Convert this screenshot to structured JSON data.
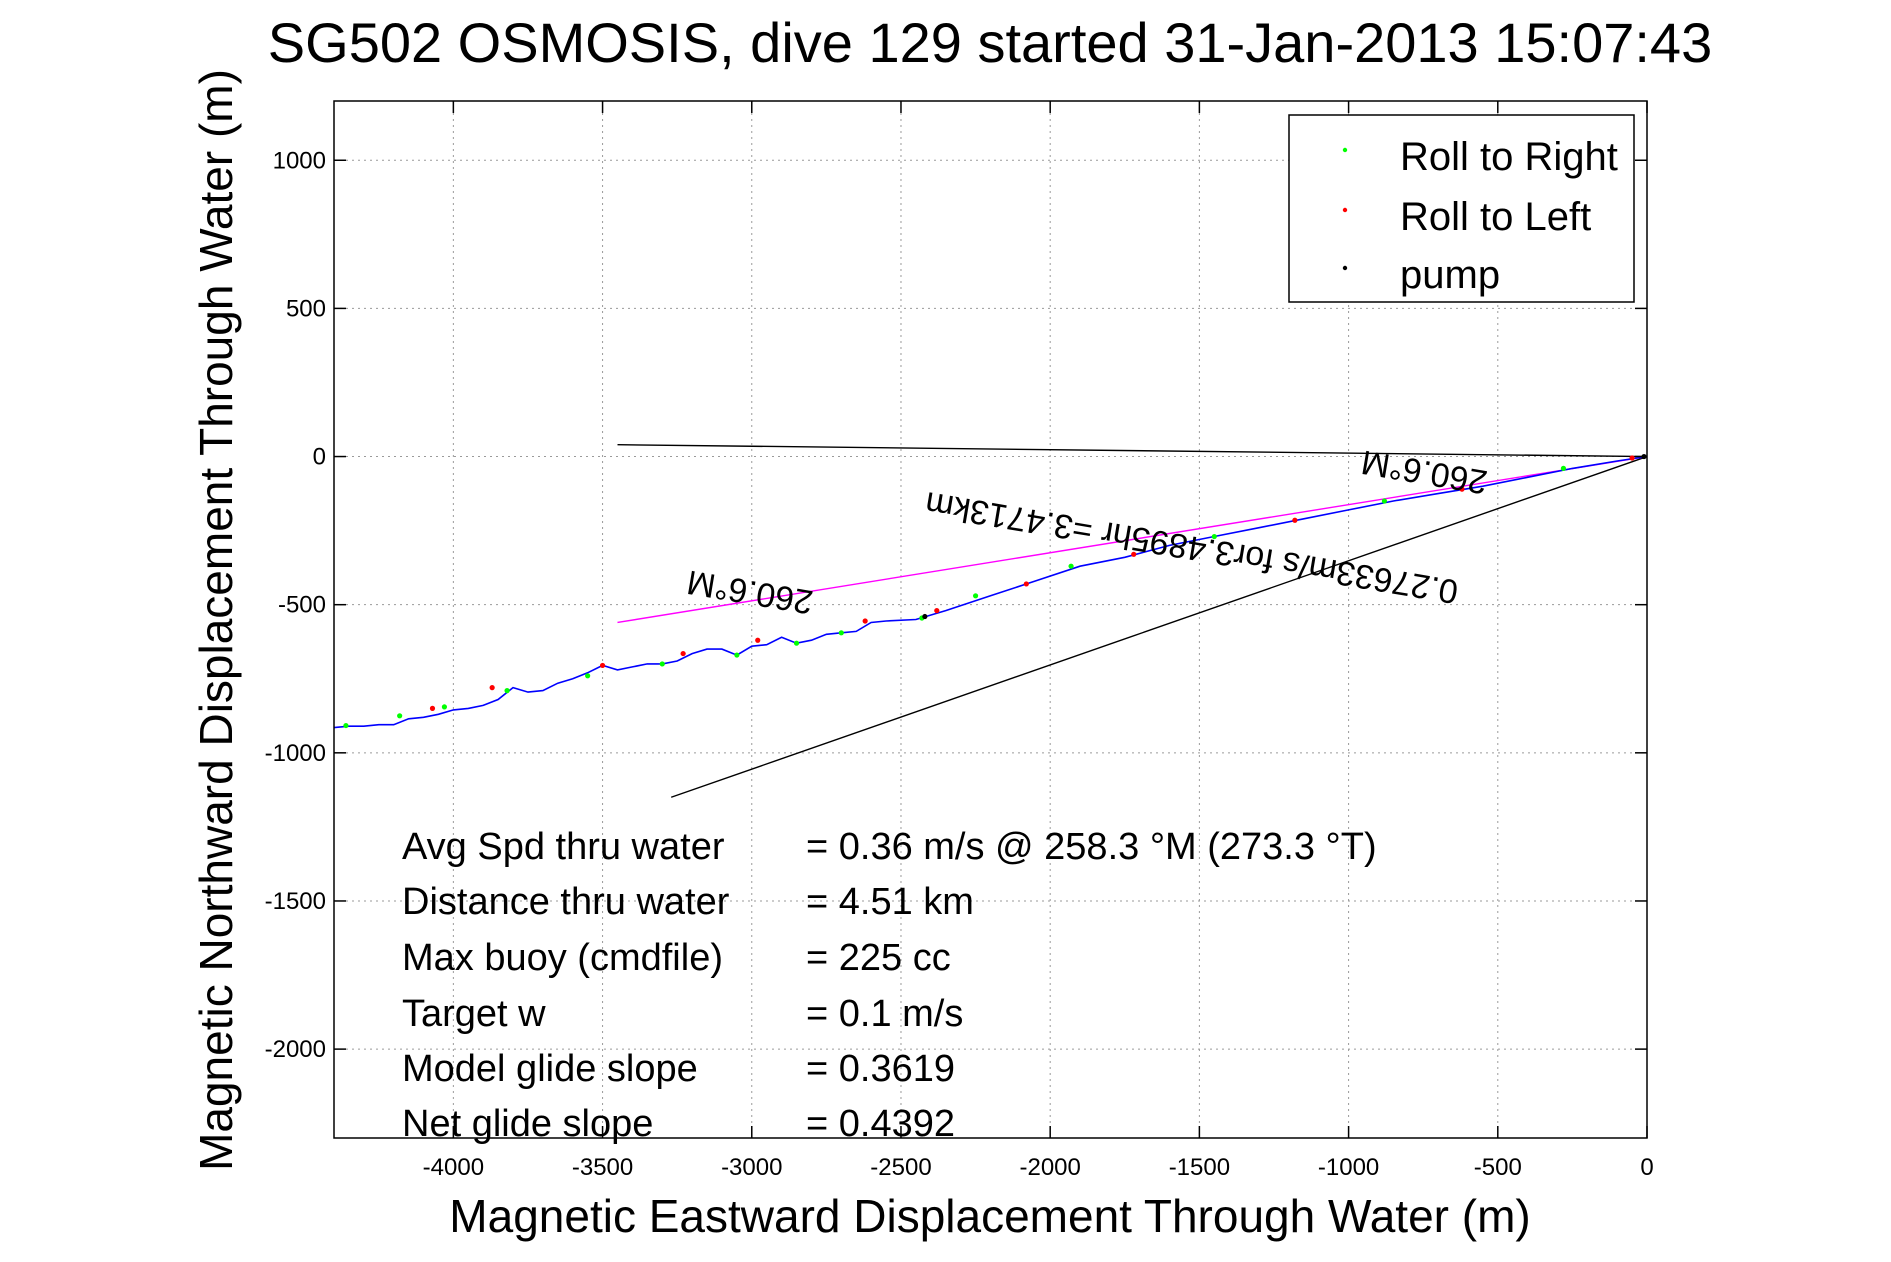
{
  "chart_data": {
    "type": "line",
    "title": "SG502 OSMOSIS, dive 129 started 31-Jan-2013 15:07:43",
    "xlabel": "Magnetic Eastward Displacement Through Water (m)",
    "ylabel": "Magnetic Northward Displacement Through Water (m)",
    "xlim": [
      -4400,
      0
    ],
    "ylim": [
      -2300,
      1200
    ],
    "xticks": [
      -4000,
      -3500,
      -3000,
      -2500,
      -2000,
      -1500,
      -1000,
      -500,
      0
    ],
    "yticks": [
      1000,
      500,
      0,
      -500,
      -1000,
      -1500,
      -2000
    ],
    "grid": true,
    "legend_position": "top-right",
    "legend": [
      {
        "label": "Roll to Right",
        "color": "#00ff00"
      },
      {
        "label": "Roll to Left",
        "color": "#ff0000"
      },
      {
        "label": "pump",
        "color": "#000000"
      }
    ],
    "track_color": "#0000ff",
    "track": {
      "x": [
        0,
        -100,
        -250,
        -400,
        -550,
        -700,
        -850,
        -1000,
        -1150,
        -1300,
        -1450,
        -1600,
        -1750,
        -1900,
        -2050,
        -2200,
        -2350,
        -2450,
        -2550,
        -2600,
        -2650,
        -2700,
        -2750,
        -2800,
        -2850,
        -2900,
        -2950,
        -3000,
        -3050,
        -3100,
        -3150,
        -3200,
        -3250,
        -3300,
        -3350,
        -3400,
        -3450,
        -3500,
        -3550,
        -3600,
        -3650,
        -3700,
        -3750,
        -3800,
        -3850,
        -3900,
        -3950,
        -4000,
        -4050,
        -4100,
        -4150,
        -4200,
        -4250,
        -4300,
        -4350,
        -4400
      ],
      "y": [
        0,
        -15,
        -40,
        -70,
        -100,
        -125,
        -150,
        -180,
        -210,
        -240,
        -270,
        -300,
        -340,
        -370,
        -420,
        -470,
        -520,
        -550,
        -555,
        -560,
        -590,
        -595,
        -600,
        -620,
        -630,
        -610,
        -635,
        -640,
        -670,
        -650,
        -650,
        -665,
        -690,
        -700,
        -700,
        -710,
        -720,
        -705,
        -730,
        -750,
        -765,
        -790,
        -795,
        -780,
        -820,
        -840,
        -850,
        -855,
        -870,
        -880,
        -885,
        -905,
        -905,
        -910,
        -910,
        -915
      ]
    },
    "roll_right_points": {
      "x": [
        -280,
        -880,
        -1450,
        -1930,
        -2250,
        -2430,
        -2700,
        -2850,
        -3050,
        -3300,
        -3550,
        -3820,
        -4030,
        -4180,
        -4360
      ],
      "y": [
        -40,
        -150,
        -270,
        -370,
        -470,
        -545,
        -595,
        -630,
        -670,
        -700,
        -740,
        -790,
        -845,
        -875,
        -908
      ]
    },
    "roll_left_points": {
      "x": [
        -50,
        -620,
        -1180,
        -1720,
        -2080,
        -2380,
        -2620,
        -2980,
        -3230,
        -3500,
        -3870,
        -4070
      ],
      "y": [
        -5,
        -110,
        -215,
        -330,
        -430,
        -520,
        -555,
        -620,
        -665,
        -705,
        -780,
        -850
      ]
    },
    "pump_points": {
      "x": [
        -10,
        -2420
      ],
      "y": [
        0,
        -540
      ]
    },
    "heading_line": {
      "x": [
        0,
        -3450
      ],
      "y": [
        0,
        -560
      ],
      "color": "#ff00ff"
    },
    "reference_lines": [
      {
        "x": [
          0,
          -3450
        ],
        "y": [
          0,
          40
        ],
        "color": "#000000"
      },
      {
        "x": [
          0,
          -3270
        ],
        "y": [
          0,
          -1150
        ],
        "color": "#000000"
      }
    ],
    "annotations": [
      {
        "text": "260.6°M",
        "x": -3000,
        "y": -420,
        "rotate": 189.5
      },
      {
        "text": "260.6°M",
        "x": -740,
        "y": -15,
        "rotate": 189.5
      },
      {
        "text": "0.27633m/s for3.4895hr =3.4713km",
        "x": -1520,
        "y": -270,
        "rotate": 189.5
      }
    ],
    "stats": [
      {
        "label": "Avg Spd thru water",
        "value": "=  0.36 m/s @ 258.3 °M (273.3 °T)"
      },
      {
        "label": "Distance thru water",
        "value": "=  4.51 km"
      },
      {
        "label": "Max buoy (cmdfile)",
        "value": "= 225 cc"
      },
      {
        "label": "Target w",
        "value": "= 0.1 m/s"
      },
      {
        "label": "Model glide slope",
        "value": "= 0.3619"
      },
      {
        "label": "Net glide slope",
        "value": "= 0.4392"
      }
    ]
  }
}
